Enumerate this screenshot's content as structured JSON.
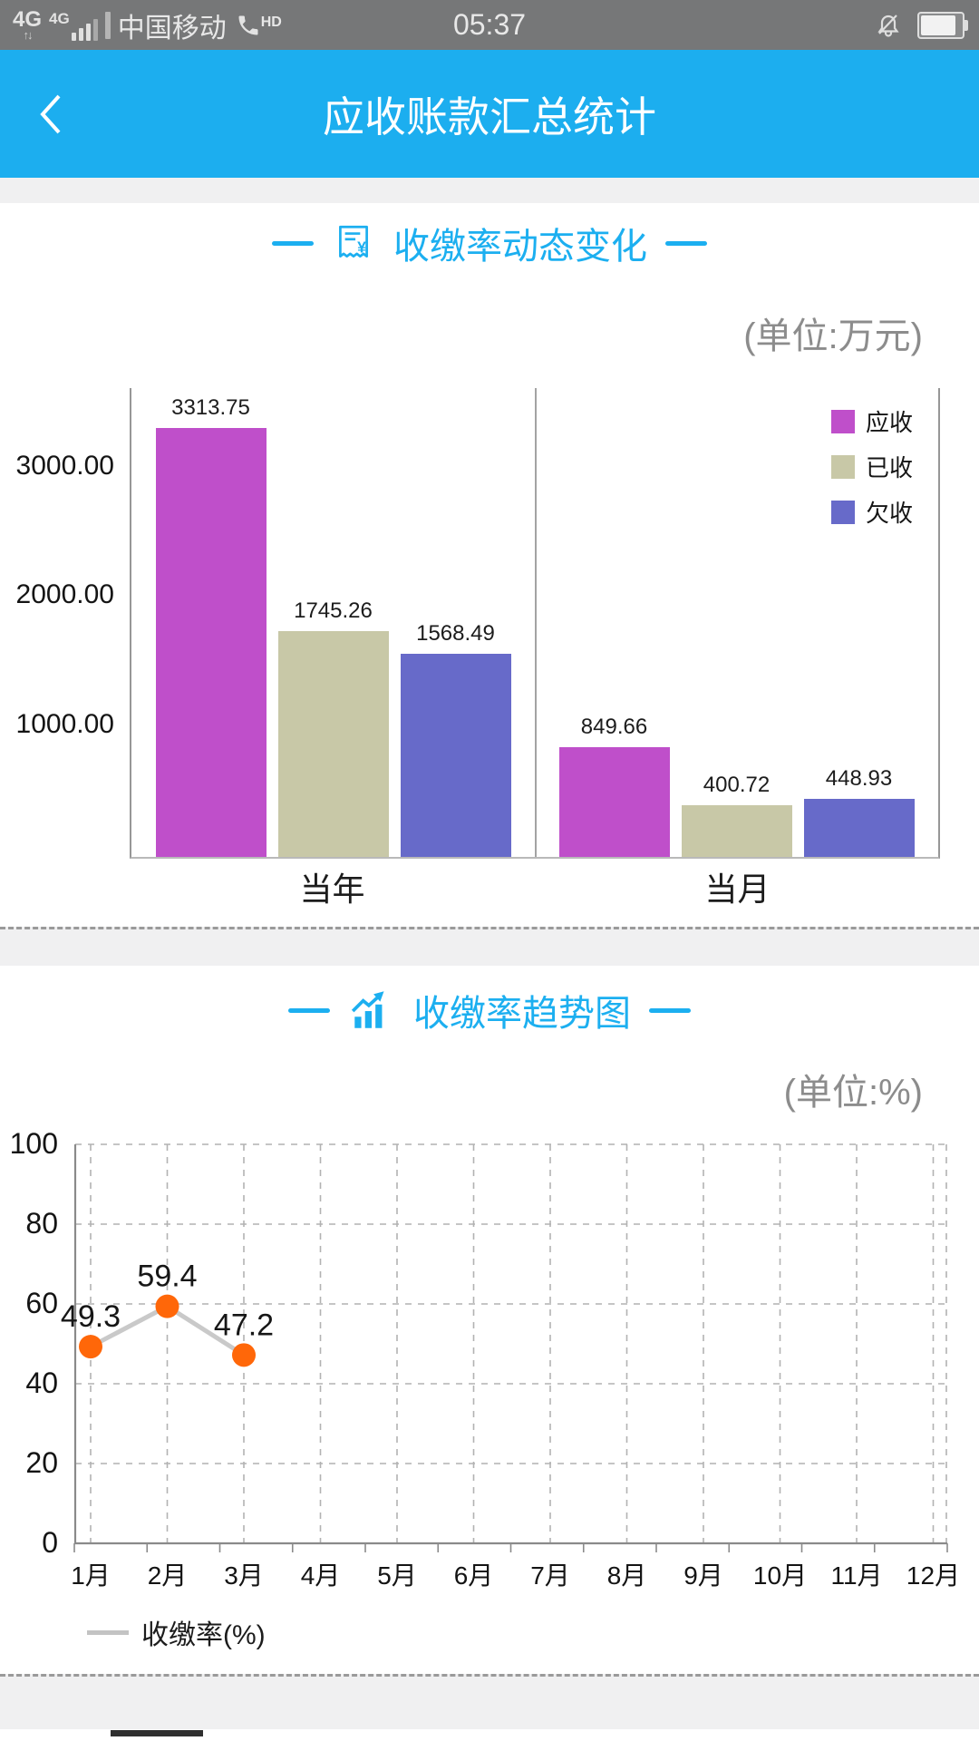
{
  "status_bar": {
    "network_badge": "4G",
    "network_badge_secondary": "4G",
    "carrier": "中国移动",
    "hd_label": "HD",
    "time": "05:37"
  },
  "header": {
    "title": "应收账款汇总统计"
  },
  "sections": [
    {
      "title": "收缴率动态变化",
      "unit": "(单位:万元)"
    },
    {
      "title": "收缴率趋势图",
      "unit": "(单位:%)"
    }
  ],
  "chart_data": [
    {
      "type": "bar",
      "title": "收缴率动态变化",
      "unit": "万元",
      "categories": [
        "当年",
        "当月"
      ],
      "series": [
        {
          "name": "应收",
          "color": "#bf4fca",
          "values": [
            3313.75,
            849.66
          ]
        },
        {
          "name": "已收",
          "color": "#c8c8a7",
          "values": [
            1745.26,
            400.72
          ]
        },
        {
          "name": "欠收",
          "color": "#676ac9",
          "values": [
            1568.49,
            448.93
          ]
        }
      ],
      "ytick_labels": [
        "1000.00",
        "2000.00",
        "3000.00"
      ],
      "ylim": [
        0,
        3620
      ],
      "legend_position": "top-right",
      "grid": false
    },
    {
      "type": "line",
      "title": "收缴率趋势图",
      "unit": "%",
      "x": [
        "1月",
        "2月",
        "3月",
        "4月",
        "5月",
        "6月",
        "7月",
        "8月",
        "9月",
        "10月",
        "11月",
        "12月"
      ],
      "series": [
        {
          "name": "收缴率(%)",
          "values": [
            49.3,
            59.4,
            47.2,
            null,
            null,
            null,
            null,
            null,
            null,
            null,
            null,
            null
          ],
          "line_color": "#c9c9c9",
          "point_color": "#ff6709"
        }
      ],
      "yticks": [
        0,
        20,
        40,
        60,
        80,
        100
      ],
      "ylim": [
        0,
        100
      ],
      "grid": true,
      "legend_position": "bottom-left"
    }
  ],
  "colors": {
    "accent_blue": "#1caff0",
    "status_bar_bg": "#767778",
    "separator_band": "#f0f0f1"
  }
}
